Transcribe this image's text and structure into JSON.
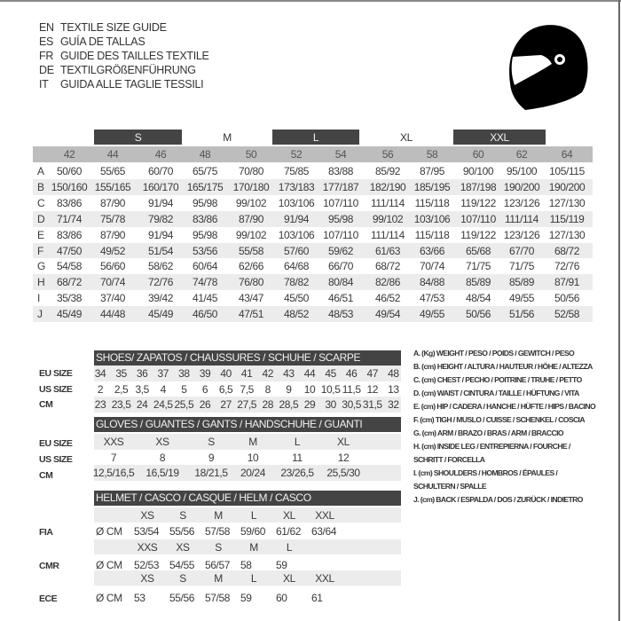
{
  "titles": [
    {
      "code": "EN",
      "text": "TEXTILE SIZE GUIDE"
    },
    {
      "code": "ES",
      "text": "GUÍA DE TALLAS"
    },
    {
      "code": "FR",
      "text": "GUIDE DES TAILLES TEXTILE"
    },
    {
      "code": "DE",
      "text": "TEXTILGRÖßENFÜHRUNG"
    },
    {
      "code": "IT",
      "text": "GUIDA ALLE TAGLIE TESSILI"
    }
  ],
  "helmet_icon": "motorcycle-helmet-icon",
  "textile": {
    "groups": [
      {
        "label": "S",
        "dark": true
      },
      {
        "label": "M",
        "dark": false
      },
      {
        "label": "L",
        "dark": true
      },
      {
        "label": "XL",
        "dark": false
      },
      {
        "label": "XXL",
        "dark": true
      }
    ],
    "sizes": [
      "42",
      "44",
      "46",
      "48",
      "50",
      "52",
      "54",
      "56",
      "58",
      "60",
      "62",
      "64"
    ],
    "rows": [
      {
        "key": "A",
        "values": [
          "50/60",
          "55/65",
          "60/70",
          "65/75",
          "70/80",
          "75/85",
          "83/88",
          "85/92",
          "87/95",
          "90/100",
          "95/100",
          "105/115"
        ]
      },
      {
        "key": "B",
        "values": [
          "150/160",
          "155/165",
          "160/170",
          "165/175",
          "170/180",
          "173/183",
          "177/187",
          "182/190",
          "185/195",
          "187/198",
          "190/200",
          "190/200"
        ]
      },
      {
        "key": "C",
        "values": [
          "83/86",
          "87/90",
          "91/94",
          "95/98",
          "99/102",
          "103/106",
          "107/110",
          "111/114",
          "115/118",
          "119/122",
          "123/126",
          "127/130"
        ]
      },
      {
        "key": "D",
        "values": [
          "71/74",
          "75/78",
          "79/82",
          "83/86",
          "87/90",
          "91/94",
          "95/98",
          "99/102",
          "103/106",
          "107/110",
          "111/114",
          "115/119"
        ]
      },
      {
        "key": "E",
        "values": [
          "83/86",
          "87/90",
          "91/94",
          "95/98",
          "99/102",
          "103/106",
          "107/110",
          "111/114",
          "115/118",
          "119/122",
          "123/126",
          "127/130"
        ]
      },
      {
        "key": "F",
        "values": [
          "47/50",
          "49/52",
          "51/54",
          "53/56",
          "55/58",
          "57/60",
          "59/62",
          "61/63",
          "63/66",
          "65/68",
          "67/70",
          "68/72"
        ]
      },
      {
        "key": "G",
        "values": [
          "54/58",
          "56/60",
          "58/62",
          "60/64",
          "62/66",
          "64/68",
          "66/70",
          "68/72",
          "70/74",
          "71/75",
          "71/75",
          "72/76"
        ]
      },
      {
        "key": "H",
        "values": [
          "68/72",
          "70/74",
          "72/76",
          "74/78",
          "76/80",
          "78/82",
          "80/84",
          "82/86",
          "84/88",
          "85/89",
          "85/89",
          "87/91"
        ]
      },
      {
        "key": "I",
        "values": [
          "35/38",
          "37/40",
          "39/42",
          "41/45",
          "43/47",
          "45/50",
          "46/51",
          "46/52",
          "47/53",
          "48/54",
          "49/55",
          "50/56"
        ]
      },
      {
        "key": "J",
        "values": [
          "45/49",
          "44/48",
          "45/49",
          "46/50",
          "47/51",
          "48/52",
          "48/53",
          "49/54",
          "49/55",
          "50/56",
          "51/56",
          "52/58"
        ]
      }
    ]
  },
  "shoes": {
    "title": "SHOES/ ZAPATOS / CHAUSSURES / SCHUHE / SCARPE",
    "rows": [
      {
        "label": "EU SIZE",
        "values": [
          "34",
          "35",
          "36",
          "37",
          "38",
          "39",
          "40",
          "41",
          "42",
          "43",
          "44",
          "45",
          "46",
          "47",
          "48"
        ]
      },
      {
        "label": "US SIZE",
        "values": [
          "2",
          "2,5",
          "3,5",
          "4",
          "5",
          "6",
          "6,5",
          "7,5",
          "8",
          "9",
          "10",
          "10,5",
          "11,5",
          "12",
          "13"
        ]
      },
      {
        "label": "CM",
        "values": [
          "23",
          "23,5",
          "24",
          "24,5",
          "25,5",
          "26",
          "27",
          "27,5",
          "28",
          "28,5",
          "29",
          "30",
          "30,5",
          "31,5",
          "32"
        ]
      }
    ]
  },
  "gloves": {
    "title": "GLOVES / GUANTES / GANTS / HANDSCHUHE / GUANTI",
    "rows": [
      {
        "label": "EU SIZE",
        "values": [
          "XXS",
          "XS",
          "S",
          "M",
          "L",
          "XL"
        ]
      },
      {
        "label": "US SIZE",
        "values": [
          "7",
          "8",
          "9",
          "10",
          "11",
          "12"
        ]
      },
      {
        "label": "CM",
        "values": [
          "12,5/16,5",
          "16,5/19",
          "18/21,5",
          "20/24",
          "23/26,5",
          "25,5/30"
        ]
      }
    ]
  },
  "helmet": {
    "title": "HELMET / CASCO / CASQUE / HELM / CASCO",
    "unit": "Ø CM",
    "standards": [
      {
        "label": "FIA",
        "sizes": [
          "XS",
          "S",
          "M",
          "L",
          "XL",
          "XXL"
        ],
        "values": [
          "53/54",
          "55/56",
          "57/58",
          "59/60",
          "61/62",
          "63/64"
        ]
      },
      {
        "label": "CMR",
        "sizes": [
          "XXS",
          "XS",
          "S",
          "M",
          "L"
        ],
        "values": [
          "52/53",
          "54/55",
          "56/57",
          "58",
          "59"
        ]
      },
      {
        "label": "ECE",
        "sizes": [
          "XS",
          "S",
          "M",
          "L",
          "XL",
          "XXL"
        ],
        "values": [
          "53",
          "55/56",
          "57/58",
          "59",
          "60",
          "61"
        ]
      }
    ]
  },
  "legend": [
    "A. (Kg) WEIGHT / PESO / POIDS / GEWITCH / PESO",
    "B. (cm) HEIGHT / ALTURA / HAUTEUR / HÖHE / ALTEZZA",
    "C. (cm) CHEST / PECHO / POITRINE / TRUHE / PETTO",
    "D. (cm) WAIST / CINTURA / TAILLE / HÜFTUNG / VITA",
    "E. (cm) HIP / CADERA / HANCHE / HÜFTE / HIPS /  BACINO",
    "F.  (cm) TIGH / MUSLO / CUISSE / SCHENKEL / COSCIA",
    "G. (cm) ARM  / BRAZO / BRAS / ARM / BRACCIO",
    "H. (cm) INSIDE LEG / ENTREPIERNA / FOURCHE /",
    "SCHRITT / FORCELLA",
    "I.  (cm) SHOULDERS / HOMBROS / ÉPAULES /",
    "SCHULTERN / SPALLE",
    "J. (cm) BACK / ESPALDA / DOS / ZURÜCK / INDIETRO"
  ]
}
